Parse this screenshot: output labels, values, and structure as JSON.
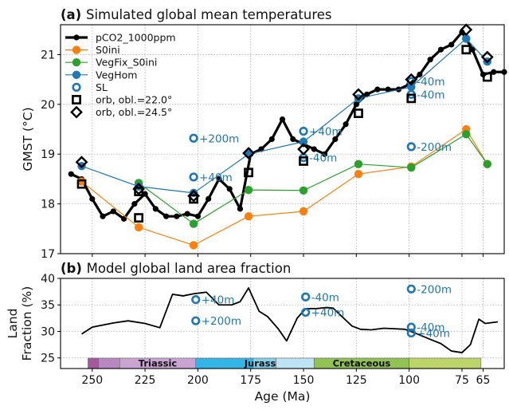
{
  "chart_data": [
    {
      "type": "line",
      "title": "Simulated global mean temperatures",
      "panel_label": "(a)",
      "xlabel": "",
      "ylabel": "GMST (°C)",
      "xlim": [
        265,
        55
      ],
      "ylim": [
        17,
        21.6
      ],
      "x_ticks": [
        250,
        225,
        200,
        175,
        150,
        125,
        100,
        75,
        65
      ],
      "x_tick_labels": [
        "",
        "",
        "",
        "",
        "",
        "",
        "",
        "",
        ""
      ],
      "y_ticks": [
        17,
        18,
        19,
        20,
        21
      ],
      "y_tick_labels": [
        "17",
        "18",
        "19",
        "20",
        "21"
      ],
      "grid": true,
      "legend_position": "top-left",
      "colors": {
        "pco2": "#000000",
        "s0ini": "#ff7f0e",
        "vegfix": "#2ca02c",
        "veghom": "#1f77b4"
      },
      "series": [
        {
          "name": "pCO2_1000ppm",
          "color": "#000000",
          "style": "line-marker-large",
          "points": [
            [
              260,
              18.6
            ],
            [
              255,
              18.5
            ],
            [
              250,
              18.1
            ],
            [
              245,
              17.75
            ],
            [
              240,
              17.85
            ],
            [
              235,
              17.7
            ],
            [
              230,
              18.0
            ],
            [
              225,
              18.2
            ],
            [
              220,
              17.9
            ],
            [
              215,
              17.75
            ],
            [
              210,
              17.75
            ],
            [
              205,
              17.8
            ],
            [
              200,
              17.75
            ],
            [
              195,
              18.1
            ],
            [
              190,
              18.5
            ],
            [
              185,
              18.3
            ],
            [
              180,
              17.9
            ],
            [
              175,
              19.0
            ],
            [
              170,
              19.1
            ],
            [
              165,
              19.3
            ],
            [
              160,
              19.7
            ],
            [
              155,
              19.3
            ],
            [
              150,
              19.2
            ],
            [
              145,
              19.1
            ],
            [
              140,
              19.0
            ],
            [
              135,
              19.3
            ],
            [
              130,
              19.6
            ],
            [
              125,
              20.0
            ],
            [
              120,
              20.2
            ],
            [
              115,
              20.3
            ],
            [
              110,
              20.3
            ],
            [
              105,
              20.3
            ],
            [
              100,
              20.4
            ],
            [
              95,
              20.6
            ],
            [
              90,
              20.9
            ],
            [
              85,
              21.1
            ],
            [
              80,
              21.2
            ],
            [
              75,
              21.45
            ],
            [
              70,
              21.1
            ],
            [
              65,
              20.6
            ],
            [
              60,
              20.65
            ],
            [
              55,
              20.65
            ]
          ]
        },
        {
          "name": "S0ini",
          "color": "#ff7f0e",
          "style": "line-marker",
          "points": [
            [
              255,
              18.45
            ],
            [
              228,
              17.53
            ],
            [
              202,
              17.17
            ],
            [
              176,
              17.75
            ],
            [
              150,
              17.85
            ],
            [
              124,
              18.6
            ],
            [
              99,
              18.75
            ],
            [
              73,
              19.5
            ],
            [
              63,
              18.8
            ]
          ]
        },
        {
          "name": "VegFix_S0ini",
          "color": "#2ca02c",
          "style": "line-marker",
          "points": [
            [
              228,
              18.42
            ],
            [
              202,
              17.6
            ],
            [
              176,
              18.28
            ],
            [
              150,
              18.27
            ],
            [
              124,
              18.8
            ],
            [
              99,
              18.73
            ],
            [
              73,
              19.4
            ],
            [
              63,
              18.8
            ]
          ]
        },
        {
          "name": "VegHom",
          "color": "#1f77b4",
          "style": "line-marker",
          "points": [
            [
              255,
              18.76
            ],
            [
              228,
              18.35
            ],
            [
              202,
              18.22
            ],
            [
              176,
              19.0
            ],
            [
              150,
              19.25
            ],
            [
              124,
              20.12
            ],
            [
              99,
              20.35
            ],
            [
              73,
              21.32
            ],
            [
              63,
              20.86
            ]
          ]
        },
        {
          "name": "SL",
          "color": "#1f77b4",
          "style": "open-circle",
          "points": [
            [
              202,
              19.32
            ],
            [
              202,
              18.54
            ],
            [
              150,
              19.46
            ],
            [
              150,
              18.93
            ],
            [
              99,
              19.15
            ],
            [
              99,
              20.46
            ],
            [
              99,
              20.2
            ]
          ]
        },
        {
          "name": "orb, obl.=22.0°",
          "color": "#000000",
          "style": "open-square",
          "points": [
            [
              255,
              18.4
            ],
            [
              228,
              18.25
            ],
            [
              228,
              17.72
            ],
            [
              202,
              18.1
            ],
            [
              176,
              18.63
            ],
            [
              150,
              18.86
            ],
            [
              124,
              19.82
            ],
            [
              99,
              20.12
            ],
            [
              73,
              21.1
            ],
            [
              63,
              20.55
            ]
          ]
        },
        {
          "name": "orb, obl.=24.5°",
          "color": "#000000",
          "style": "open-diamond",
          "points": [
            [
              255,
              18.84
            ],
            [
              228,
              18.3
            ],
            [
              202,
              18.16
            ],
            [
              176,
              19.02
            ],
            [
              150,
              19.1
            ],
            [
              124,
              20.2
            ],
            [
              99,
              20.5
            ],
            [
              73,
              21.5
            ],
            [
              63,
              20.95
            ]
          ]
        }
      ],
      "annotations": [
        {
          "text": "+200m",
          "x": 202,
          "y": 19.32
        },
        {
          "text": "+40m",
          "x": 202,
          "y": 18.54
        },
        {
          "text": "+40m",
          "x": 150,
          "y": 19.46
        },
        {
          "text": "-40m",
          "x": 150,
          "y": 18.93
        },
        {
          "text": "-200m",
          "x": 99,
          "y": 19.15
        },
        {
          "text": "-40m",
          "x": 99,
          "y": 20.46
        },
        {
          "text": "-40m",
          "x": 99,
          "y": 20.2
        }
      ]
    },
    {
      "type": "line",
      "title": "Model global land area fraction",
      "panel_label": "(b)",
      "xlabel": "Age (Ma)",
      "ylabel_lines": [
        "Land",
        "Fraction (%)"
      ],
      "xlim": [
        265,
        55
      ],
      "ylim": [
        23,
        40
      ],
      "x_ticks": [
        250,
        225,
        200,
        175,
        150,
        125,
        100,
        75,
        65
      ],
      "x_tick_labels": [
        "250",
        "225",
        "200",
        "175",
        "150",
        "125",
        "100",
        "75",
        "65"
      ],
      "y_ticks": [
        25,
        30,
        35,
        40
      ],
      "y_tick_labels": [
        "25",
        "30",
        "35",
        "40"
      ],
      "grid": true,
      "series": [
        {
          "name": "Land fraction",
          "color": "#000000",
          "style": "line",
          "points": [
            [
              255,
              29.5
            ],
            [
              250,
              30.8
            ],
            [
              240,
              31.6
            ],
            [
              233,
              32.0
            ],
            [
              225,
              31.5
            ],
            [
              218,
              30.7
            ],
            [
              212,
              37.0
            ],
            [
              207,
              36.7
            ],
            [
              202,
              37.1
            ],
            [
              196,
              37.4
            ],
            [
              190,
              35.0
            ],
            [
              184,
              35.0
            ],
            [
              180,
              35.6
            ],
            [
              176,
              38.2
            ],
            [
              171,
              33.8
            ],
            [
              167,
              32.8
            ],
            [
              162,
              30.5
            ],
            [
              158,
              28.2
            ],
            [
              153,
              32.5
            ],
            [
              149,
              34.3
            ],
            [
              144,
              34.3
            ],
            [
              139,
              34.5
            ],
            [
              136,
              34.4
            ],
            [
              131,
              32.5
            ],
            [
              127,
              31.0
            ],
            [
              123,
              30.4
            ],
            [
              118,
              30.3
            ],
            [
              112,
              30.6
            ],
            [
              107,
              30.5
            ],
            [
              102,
              30.4
            ],
            [
              96,
              29.5
            ],
            [
              90,
              28.5
            ],
            [
              85,
              27.7
            ],
            [
              80,
              26.3
            ],
            [
              75,
              26.0
            ],
            [
              71,
              27.5
            ],
            [
              67,
              32.3
            ],
            [
              64,
              31.5
            ],
            [
              58,
              31.8
            ]
          ]
        },
        {
          "name": "SL",
          "color": "#1f77b4",
          "style": "open-circle",
          "points": [
            [
              201,
              36.0
            ],
            [
              201,
              32.0
            ],
            [
              149,
              36.5
            ],
            [
              149,
              33.6
            ],
            [
              99,
              38.0
            ],
            [
              99,
              30.8
            ],
            [
              99,
              29.7
            ]
          ]
        }
      ],
      "annotations": [
        {
          "text": "+40m",
          "x": 201,
          "y": 36.0
        },
        {
          "text": "+200m",
          "x": 201,
          "y": 32.0
        },
        {
          "text": "-40m",
          "x": 149,
          "y": 36.5
        },
        {
          "text": "+40m",
          "x": 149,
          "y": 33.6
        },
        {
          "text": "-200m",
          "x": 99,
          "y": 38.0
        },
        {
          "text": "-40m",
          "x": 99,
          "y": 30.8
        },
        {
          "text": "+40m",
          "x": 99,
          "y": 29.7
        }
      ],
      "periods": [
        {
          "label": "",
          "start": 252,
          "end": 247,
          "color": "#a6589c"
        },
        {
          "label": "",
          "start": 247,
          "end": 237,
          "color": "#b889c0"
        },
        {
          "label": "Triassic",
          "start": 237,
          "end": 201,
          "color": "#c9a5d2"
        },
        {
          "label": "",
          "start": 201,
          "end": 174,
          "color": "#33b6e6"
        },
        {
          "label": "Jurassic",
          "start": 174,
          "end": 163,
          "color": "#86cfe8"
        },
        {
          "label": "",
          "start": 163,
          "end": 145,
          "color": "#bde3f5"
        },
        {
          "label": "Cretaceous",
          "start": 145,
          "end": 100,
          "color": "#92c255"
        },
        {
          "label": "",
          "start": 100,
          "end": 66,
          "color": "#bcd56a"
        }
      ]
    }
  ]
}
